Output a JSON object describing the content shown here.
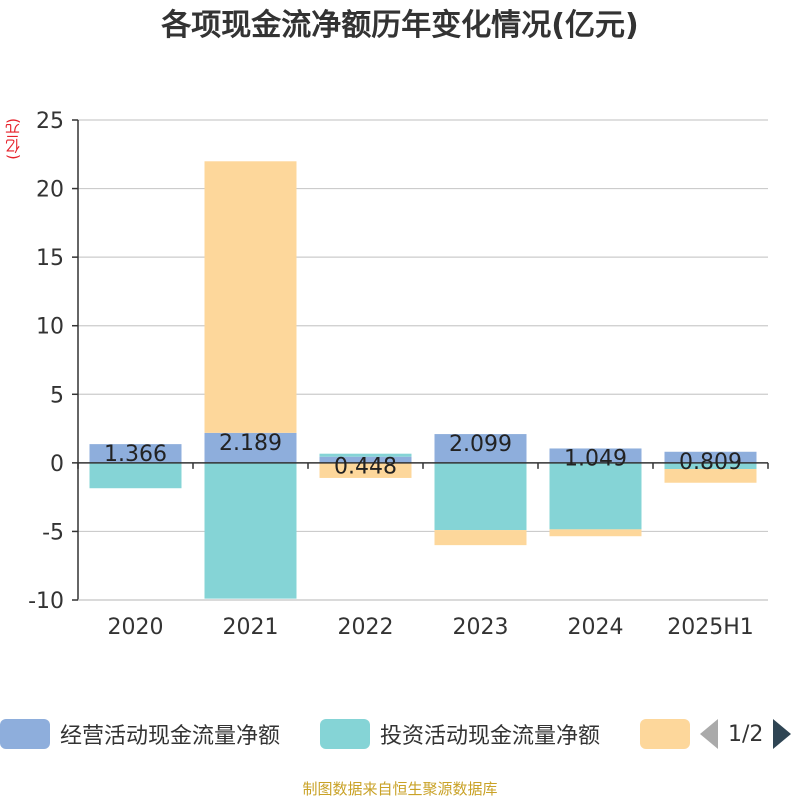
{
  "title": "各项现金流净额历年变化情况(亿元)",
  "unit": "(亿元)",
  "source": "制图数据来自恒生聚源数据库",
  "pager": {
    "text": "1/2"
  },
  "colors": {
    "operating": "#8eaedc",
    "investing": "#85d4d6",
    "financing": "#fdd79b"
  },
  "chart_data": {
    "type": "bar",
    "stacked": true,
    "categories": [
      "2020",
      "2021",
      "2022",
      "2023",
      "2024",
      "2025H1"
    ],
    "ylim": [
      -10,
      25
    ],
    "yticks": [
      25,
      20,
      15,
      10,
      5,
      0,
      -5,
      -10
    ],
    "grid": true,
    "legend_position": "bottom",
    "series": [
      {
        "name": "经营活动现金流量净额",
        "values": [
          1.366,
          2.189,
          0.448,
          2.099,
          1.049,
          0.809
        ],
        "labels": [
          "1.366",
          "2.189",
          "0.448",
          "2.099",
          "1.049",
          "0.809"
        ]
      },
      {
        "name": "投资活动现金流量净额",
        "values": [
          -1.85,
          -9.9,
          0.22,
          -4.9,
          -4.85,
          -0.45
        ],
        "labels": []
      },
      {
        "name": "",
        "values": [
          0.0,
          19.8,
          -1.1,
          -1.1,
          -0.5,
          -1.0
        ],
        "labels": []
      }
    ]
  }
}
